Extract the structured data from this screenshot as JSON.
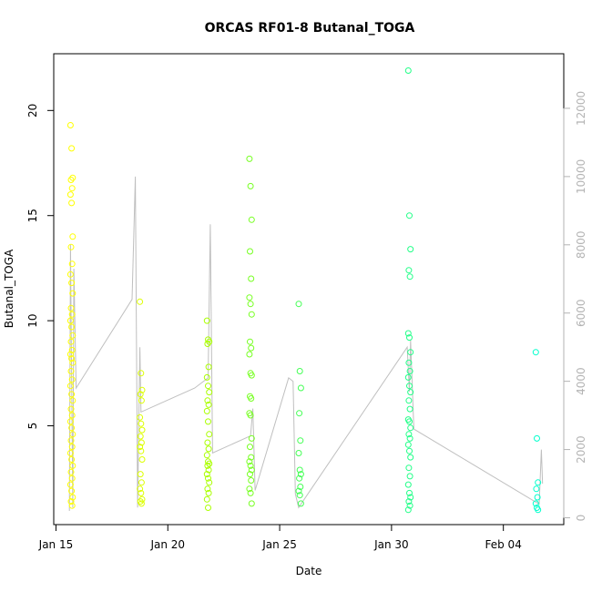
{
  "chart_data": {
    "type": "scatter",
    "title": "ORCAS RF01-8 Butanal_TOGA",
    "xlabel": "Date",
    "ylabel": "Butanal_TOGA",
    "x_ticks": [
      "Jan 15",
      "Jan 20",
      "Jan 25",
      "Jan 30",
      "Feb 04"
    ],
    "x_tick_days": [
      15,
      20,
      25,
      30,
      35
    ],
    "xlim_days": [
      14.9,
      37.7
    ],
    "ylim": [
      0.3,
      22.7
    ],
    "y_ticks": [
      5,
      10,
      15,
      20
    ],
    "y2_ticks": [
      0,
      2000,
      4000,
      6000,
      8000,
      10000,
      12000
    ],
    "y2lim": [
      -200,
      13600
    ],
    "grid": false,
    "points": [
      {
        "day": 15.7,
        "color": "#ffff00",
        "values": [
          19.3,
          18.2,
          16.8,
          16.7,
          16.3,
          16.0,
          15.6,
          14.0,
          13.5,
          12.7,
          12.2,
          11.8,
          11.3,
          10.6,
          10.3,
          10.0,
          9.7,
          9.3,
          9.0,
          8.6,
          8.4,
          8.2,
          8.0,
          7.6,
          7.2,
          6.9,
          6.5,
          6.2,
          5.8,
          5.5,
          5.2,
          4.9,
          4.6,
          4.3,
          4.0,
          3.7,
          3.4,
          3.1,
          2.8,
          2.5,
          2.2,
          1.9,
          1.6,
          1.4,
          1.2
        ]
      },
      {
        "day": 18.8,
        "color": "#ddff00",
        "values": [
          10.9,
          7.5,
          6.7,
          6.5,
          6.2,
          5.4,
          5.1,
          4.8,
          4.5,
          4.2,
          4.0,
          3.8,
          3.4,
          2.7,
          2.3,
          2.0,
          1.8,
          1.5,
          1.4,
          1.3
        ]
      },
      {
        "day": 21.8,
        "color": "#aaff00",
        "values": [
          10.0,
          9.1,
          9.0,
          8.9,
          7.8,
          7.3,
          6.9,
          6.6,
          6.2,
          6.0,
          5.7,
          5.2,
          4.6,
          4.2,
          3.9,
          3.6,
          3.3,
          3.2,
          3.1,
          2.9,
          2.7,
          2.5,
          2.3,
          2.0,
          1.8,
          1.5,
          1.1
        ]
      },
      {
        "day": 23.7,
        "color": "#77ff22",
        "values": [
          17.7,
          16.4,
          14.8,
          13.3,
          12.0,
          11.1,
          10.8,
          10.3,
          9.0,
          8.7,
          8.4,
          7.5,
          7.4,
          6.4,
          6.3,
          5.6,
          5.5,
          4.4,
          4.0,
          3.5,
          3.3,
          3.1,
          2.9,
          2.7,
          2.4,
          2.0,
          1.8,
          1.3
        ]
      },
      {
        "day": 25.9,
        "color": "#44ff55",
        "values": [
          10.8,
          7.6,
          6.8,
          5.6,
          4.3,
          3.7,
          2.9,
          2.7,
          2.5,
          2.1,
          1.9,
          1.7,
          1.3
        ]
      },
      {
        "day": 30.8,
        "color": "#22ff88",
        "values": [
          21.9,
          15.0,
          13.4,
          12.4,
          12.1,
          9.4,
          9.2,
          8.5,
          8.0,
          7.6,
          7.3,
          6.9,
          6.6,
          6.2,
          5.8,
          5.3,
          5.2,
          4.9,
          4.6,
          4.4,
          4.1,
          3.8,
          3.5,
          3.0,
          2.6,
          2.2,
          1.8,
          1.6,
          1.4,
          1.2,
          1.0
        ]
      },
      {
        "day": 36.5,
        "color": "#00ffcc",
        "values": [
          8.5,
          4.4,
          2.3,
          2.0,
          1.6,
          1.3,
          1.1,
          1.0
        ]
      }
    ],
    "altitude_series": {
      "axis": "right",
      "color": "#bfbfbf",
      "path": [
        [
          15.6,
          200
        ],
        [
          15.65,
          8000
        ],
        [
          15.75,
          300
        ],
        [
          15.8,
          7300
        ],
        [
          15.9,
          3800
        ],
        [
          18.4,
          6400
        ],
        [
          18.55,
          10000
        ],
        [
          18.65,
          300
        ],
        [
          18.75,
          5000
        ],
        [
          18.8,
          3100
        ],
        [
          21.2,
          3800
        ],
        [
          21.8,
          4100
        ],
        [
          21.9,
          8600
        ],
        [
          22.0,
          1900
        ],
        [
          23.7,
          2400
        ],
        [
          23.8,
          3200
        ],
        [
          23.9,
          800
        ],
        [
          25.4,
          4100
        ],
        [
          25.6,
          4000
        ],
        [
          25.7,
          700
        ],
        [
          25.85,
          300
        ],
        [
          30.7,
          5000
        ],
        [
          30.8,
          3700
        ],
        [
          30.85,
          5200
        ],
        [
          31.0,
          2600
        ],
        [
          36.6,
          400
        ],
        [
          36.7,
          2000
        ],
        [
          36.75,
          1000
        ]
      ]
    }
  }
}
